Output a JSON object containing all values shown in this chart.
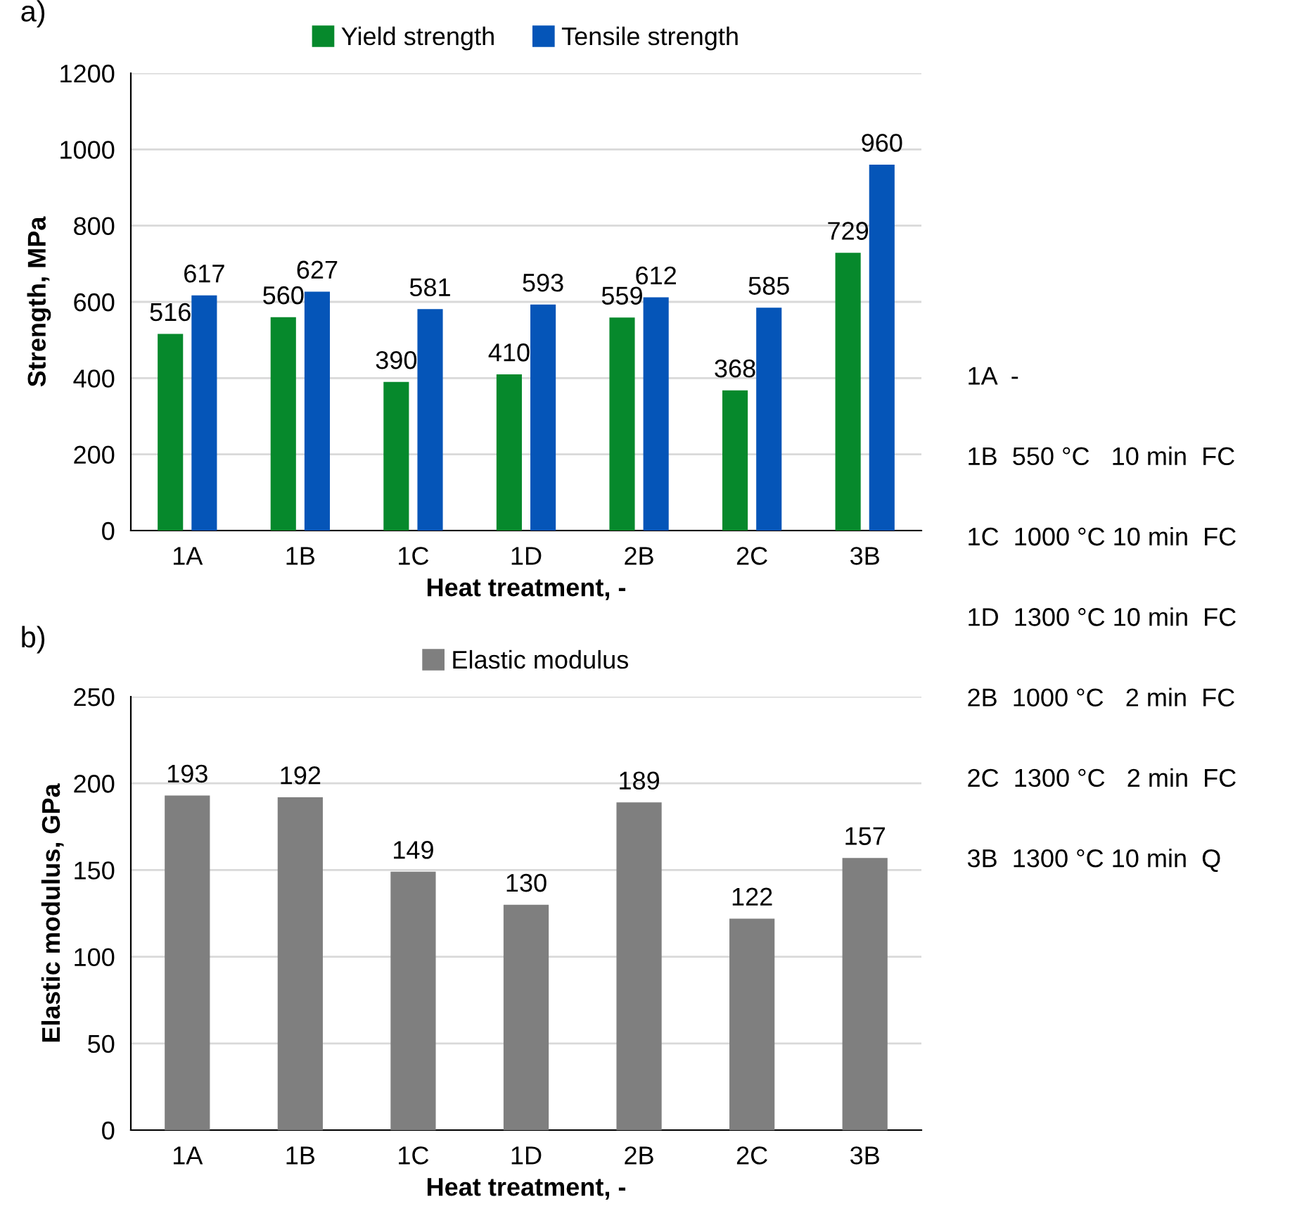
{
  "chart_data": [
    {
      "type": "bar",
      "title": "a)",
      "xlabel": "Heat treatment, -",
      "ylabel": "Strength, MPa",
      "categories": [
        "1A",
        "1B",
        "1C",
        "1D",
        "2B",
        "2C",
        "3B"
      ],
      "series": [
        {
          "name": "Yield strength",
          "color": "#06892c",
          "values": [
            516,
            560,
            390,
            410,
            559,
            368,
            729
          ]
        },
        {
          "name": "Tensile strength",
          "color": "#0555b8",
          "values": [
            617,
            627,
            581,
            593,
            612,
            585,
            960
          ]
        }
      ],
      "ylim": [
        0,
        1200
      ],
      "yticks": [
        0,
        200,
        400,
        600,
        800,
        1000,
        1200
      ],
      "grid": "y",
      "legend": "top",
      "data_labels": true
    },
    {
      "type": "bar",
      "title": "b)",
      "xlabel": "Heat treatment, -",
      "ylabel": "Elastic modulus, GPa",
      "categories": [
        "1A",
        "1B",
        "1C",
        "1D",
        "2B",
        "2C",
        "3B"
      ],
      "series": [
        {
          "name": "Elastic modulus",
          "color": "#7f7f7f",
          "values": [
            193,
            192,
            149,
            130,
            189,
            122,
            157
          ]
        }
      ],
      "ylim": [
        0,
        250
      ],
      "yticks": [
        0,
        50,
        100,
        150,
        200,
        250
      ],
      "grid": "y",
      "legend": "top",
      "data_labels": true
    },
    {
      "type": "other",
      "annotations": [
        "1A  -",
        "1B  550 °C   10 min  FC",
        "1C  1000 °C 10 min  FC",
        "1D  1300 °C 10 min  FC",
        "2B  1000 °C   2 min  FC",
        "2C  1300 °C   2 min  FC",
        "3B  1300 °C 10 min  Q"
      ]
    }
  ]
}
